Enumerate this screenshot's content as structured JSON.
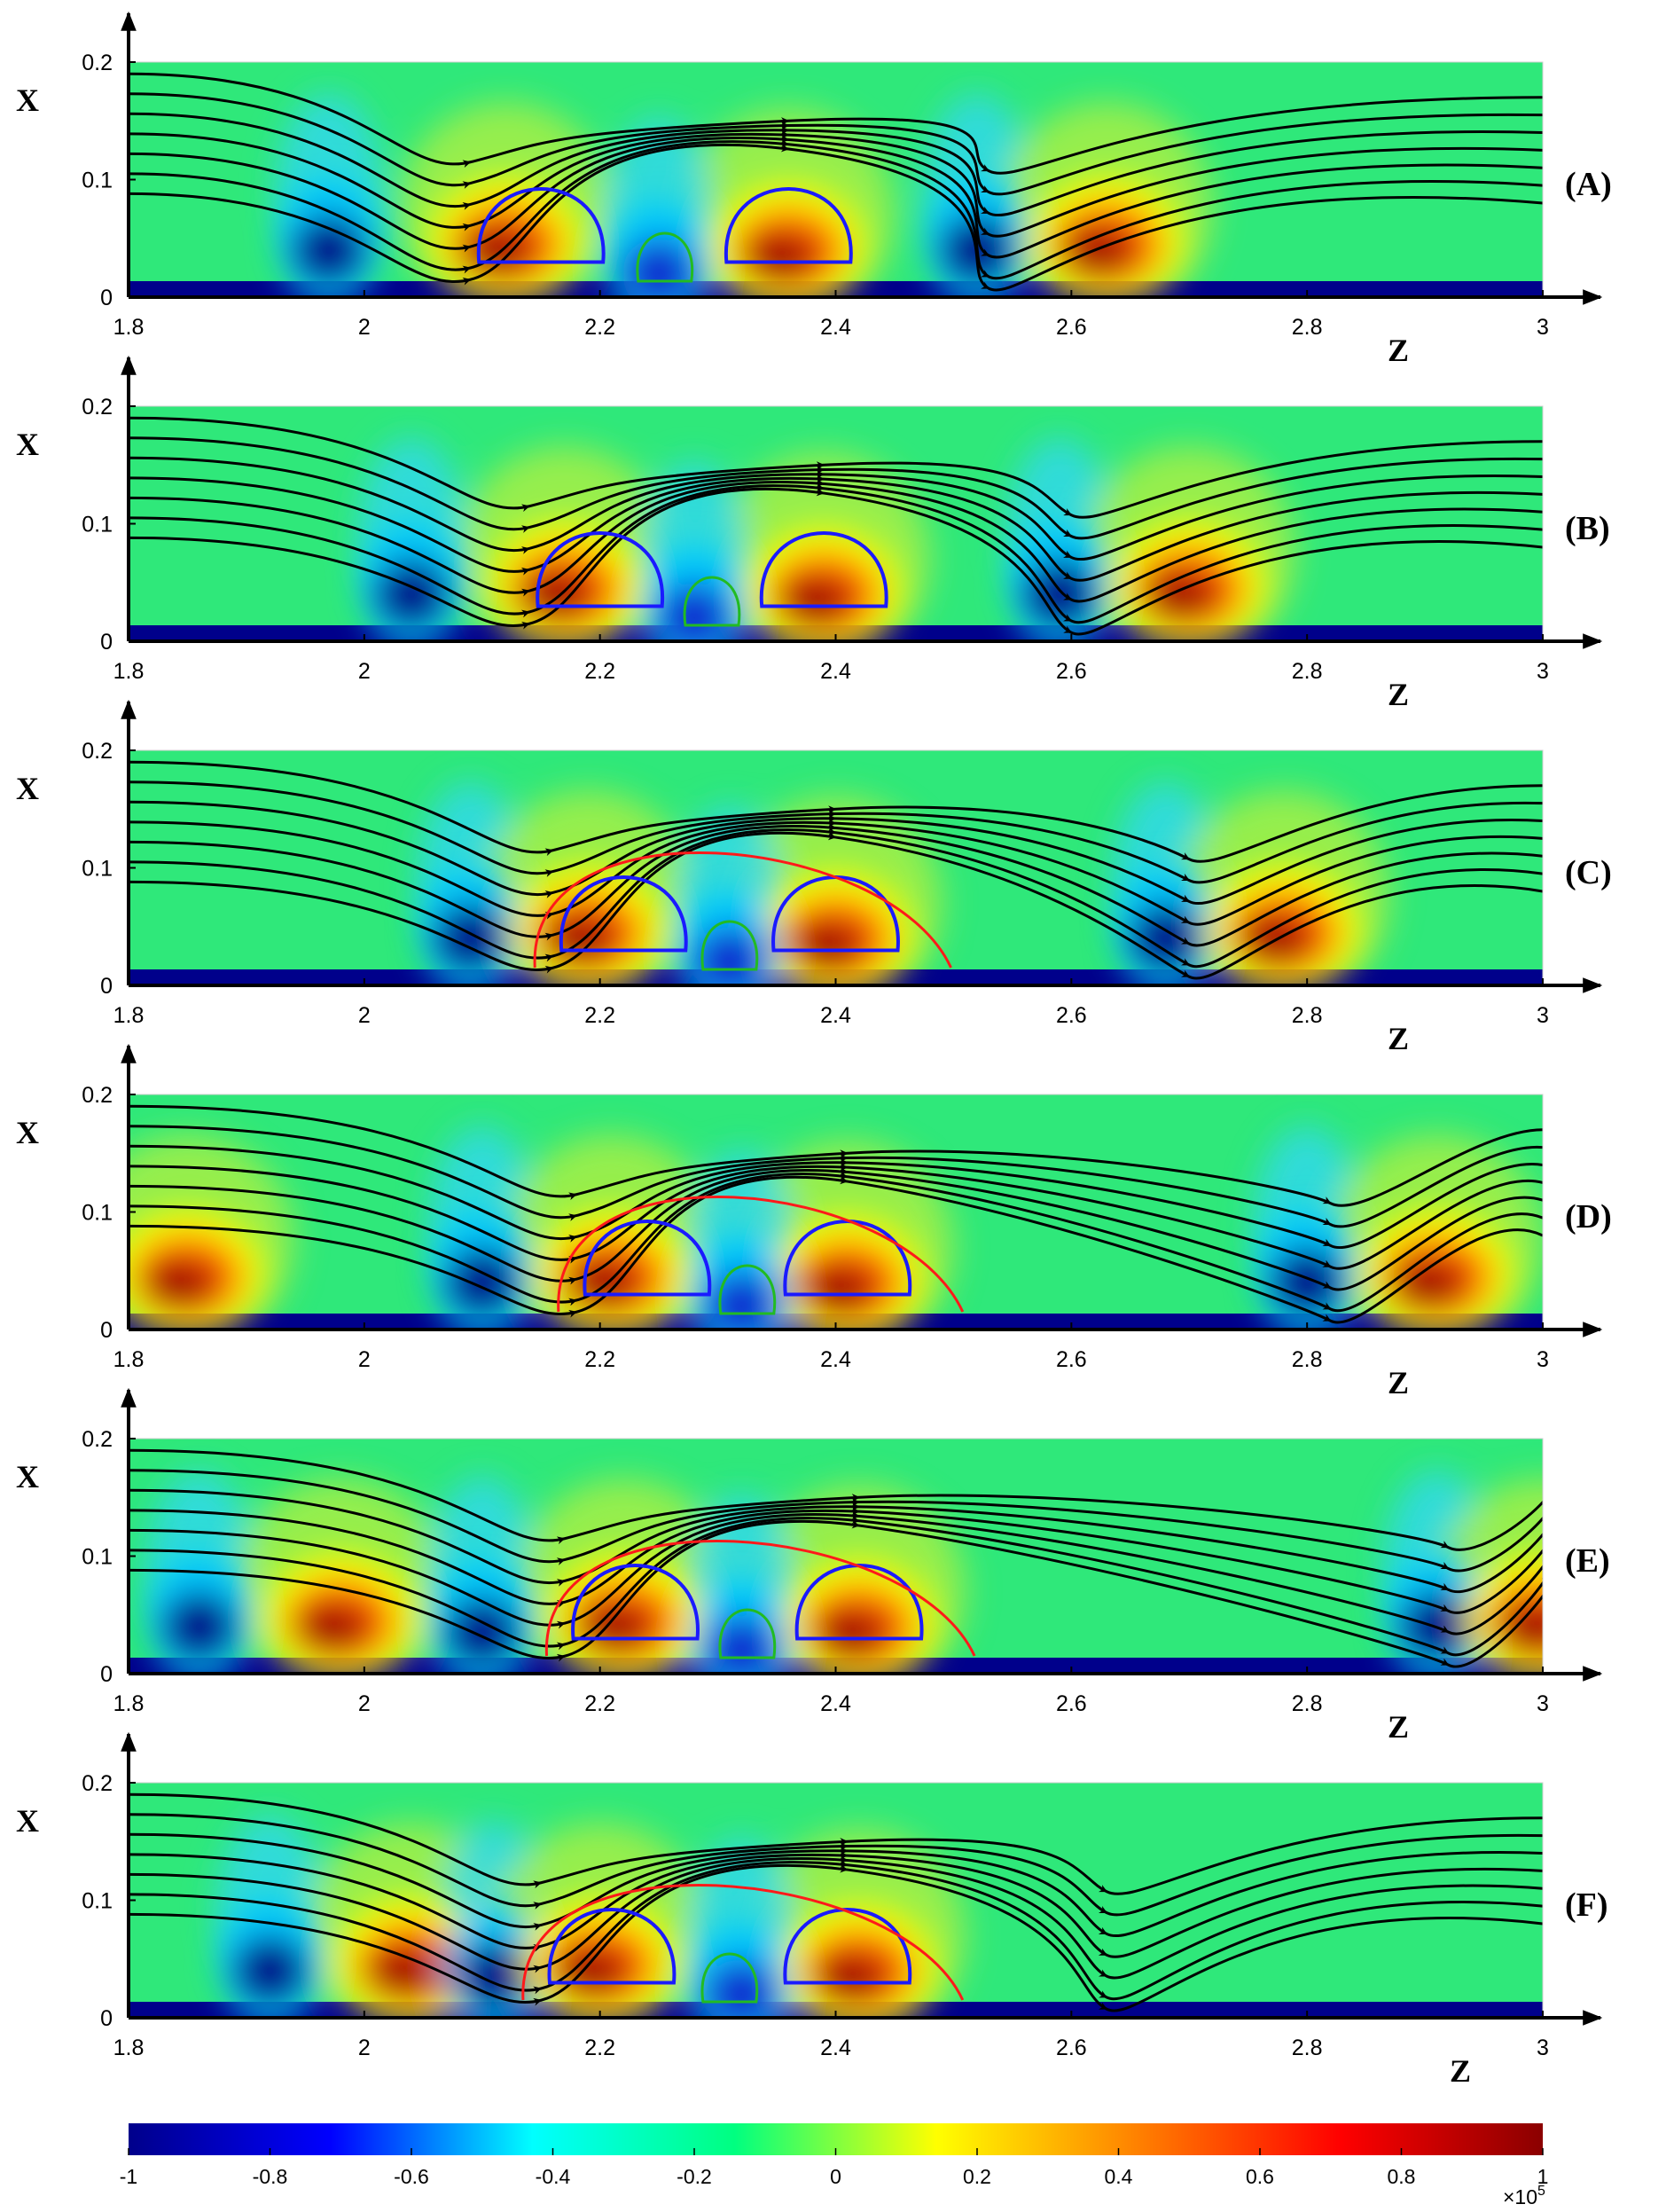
{
  "chart_data": {
    "type": "heatmap",
    "description_kind": "contour plots with streamlines",
    "x_axis": {
      "label": "Z",
      "range": [
        1.8,
        3.0
      ],
      "ticks": [
        "1.8",
        "2",
        "2.2",
        "2.4",
        "2.6",
        "2.8",
        "3"
      ]
    },
    "y_axis": {
      "label": "X",
      "range": [
        0,
        0.2
      ],
      "ticks": [
        "0",
        "0.1",
        "0.2"
      ]
    },
    "colorbar": {
      "range": [
        -1,
        1
      ],
      "ticks": [
        "-1",
        "-0.8",
        "-0.6",
        "-0.4",
        "-0.2",
        "0",
        "0.2",
        "0.4",
        "0.6",
        "0.8",
        "1"
      ],
      "exponent_label": "×10",
      "exponent_power": "5",
      "colormap": [
        "#00008b",
        "#0000ff",
        "#00ffff",
        "#00ff80",
        "#ffff00",
        "#ff8000",
        "#ff0000",
        "#8b0000"
      ]
    },
    "streamline_colors": {
      "outer": "#000000",
      "vortex": "#1a1aff",
      "inner": "#22bb22",
      "separatrix": "#ff1a1a"
    },
    "panels": [
      {
        "label": "(A)",
        "blobs": [
          [
            1.97,
            0.04,
            -1
          ],
          [
            2.12,
            0.045,
            1
          ],
          [
            2.36,
            0.04,
            1
          ],
          [
            2.52,
            0.04,
            -1
          ],
          [
            2.63,
            0.045,
            1
          ],
          [
            2.25,
            0.02,
            -0.6
          ]
        ],
        "centers": [
          2.15,
          2.36,
          2.53
        ]
      },
      {
        "label": "(B)",
        "blobs": [
          [
            2.04,
            0.04,
            -1
          ],
          [
            2.17,
            0.045,
            1
          ],
          [
            2.39,
            0.04,
            1
          ],
          [
            2.59,
            0.04,
            -1
          ],
          [
            2.7,
            0.045,
            1
          ],
          [
            2.28,
            0.02,
            -0.6
          ]
        ],
        "centers": [
          2.2,
          2.39,
          2.6
        ]
      },
      {
        "label": "(C)",
        "blobs": [
          [
            2.09,
            0.04,
            -1
          ],
          [
            2.19,
            0.045,
            1
          ],
          [
            2.4,
            0.04,
            1
          ],
          [
            2.68,
            0.04,
            -1
          ],
          [
            2.78,
            0.045,
            1
          ],
          [
            2.31,
            0.02,
            -0.6
          ]
        ],
        "centers": [
          2.22,
          2.4,
          2.7
        ]
      },
      {
        "label": "(D)",
        "blobs": [
          [
            1.85,
            0.045,
            1
          ],
          [
            2.1,
            0.04,
            -1
          ],
          [
            2.21,
            0.045,
            1
          ],
          [
            2.41,
            0.04,
            1
          ],
          [
            2.8,
            0.04,
            -1
          ],
          [
            2.91,
            0.045,
            1
          ],
          [
            2.32,
            0.02,
            -0.6
          ]
        ],
        "centers": [
          2.24,
          2.41,
          2.82
        ]
      },
      {
        "label": "(E)",
        "blobs": [
          [
            1.86,
            0.04,
            -1
          ],
          [
            1.98,
            0.045,
            1
          ],
          [
            2.1,
            0.035,
            -1
          ],
          [
            2.22,
            0.045,
            1
          ],
          [
            2.42,
            0.04,
            1
          ],
          [
            2.91,
            0.04,
            -1
          ],
          [
            3.0,
            0.045,
            1
          ],
          [
            2.32,
            0.02,
            -0.6
          ]
        ],
        "centers": [
          2.23,
          2.42,
          2.92
        ]
      },
      {
        "label": "(F)",
        "blobs": [
          [
            1.92,
            0.04,
            -1
          ],
          [
            2.04,
            0.045,
            1
          ],
          [
            2.11,
            0.035,
            -1
          ],
          [
            2.2,
            0.045,
            1
          ],
          [
            2.42,
            0.04,
            1
          ],
          [
            2.32,
            0.02,
            -0.6
          ]
        ],
        "centers": [
          2.21,
          2.41,
          2.63
        ]
      }
    ]
  }
}
